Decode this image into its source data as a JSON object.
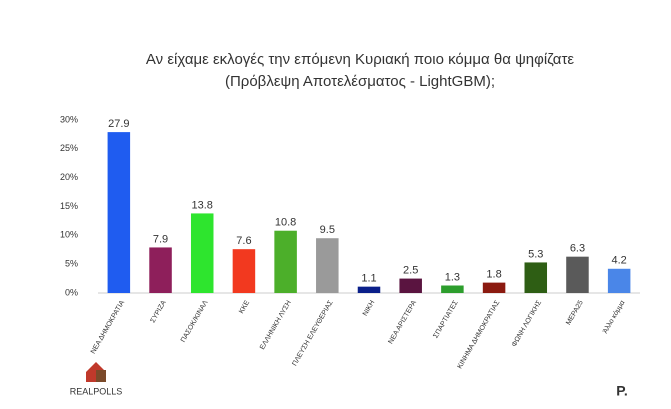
{
  "chart_data": {
    "type": "bar",
    "title": "Αν είχαμε εκλογές την επόμενη Κυριακή ποιο κόμμα θα ψηφίζατε",
    "subtitle": "(Πρόβλεψη Αποτελέσματος - LightGBM);",
    "categories": [
      "ΝΕΑ ΔΗΜΟΚΡΑΤΙΑ",
      "ΣΥΡΙΖΑ",
      "ΠΑΣΟΚ/ΚΙΝΑΛ",
      "ΚΚΕ",
      "ΕΛΛΗΝΙΚΗ ΛΥΣΗ",
      "ΠΛΕΥΣΗ ΕΛΕΥΘΕΡΙΑΣ",
      "ΝΙΚΗ",
      "ΝΕΑ ΑΡΙΣΤΕΡΑ",
      "ΣΠΑΡΤΙΑΤΕΣ",
      "ΚΙΝΗΜΑ ΔΗΜΟΚΡΑΤΙΑΣ",
      "ΦΩΝΗ ΛΟΓΙΚΗΣ",
      "ΜΕΡΑ25",
      "Άλλο κόμμα"
    ],
    "values": [
      27.9,
      7.9,
      13.8,
      7.6,
      10.8,
      9.5,
      1.1,
      2.5,
      1.3,
      1.8,
      5.3,
      6.3,
      4.2
    ],
    "colors": [
      "#1f5cf0",
      "#8e1f5b",
      "#2ee52e",
      "#f2391f",
      "#4caf2a",
      "#9a9a9a",
      "#0a1f8a",
      "#5a1440",
      "#2d9e2d",
      "#8b1a10",
      "#2e5e14",
      "#5a5a5a",
      "#4a86e8"
    ],
    "ylim": [
      0,
      30
    ],
    "yticks": [
      {
        "value": 0,
        "label": "0%"
      },
      {
        "value": 5,
        "label": "5%"
      },
      {
        "value": 10,
        "label": "10%"
      },
      {
        "value": 15,
        "label": "15%"
      },
      {
        "value": 20,
        "label": "20%"
      },
      {
        "value": 25,
        "label": "25%"
      },
      {
        "value": 30,
        "label": "30%"
      }
    ],
    "grid": false,
    "logo_text": "REALPOLLS",
    "brand_mark": "P."
  }
}
